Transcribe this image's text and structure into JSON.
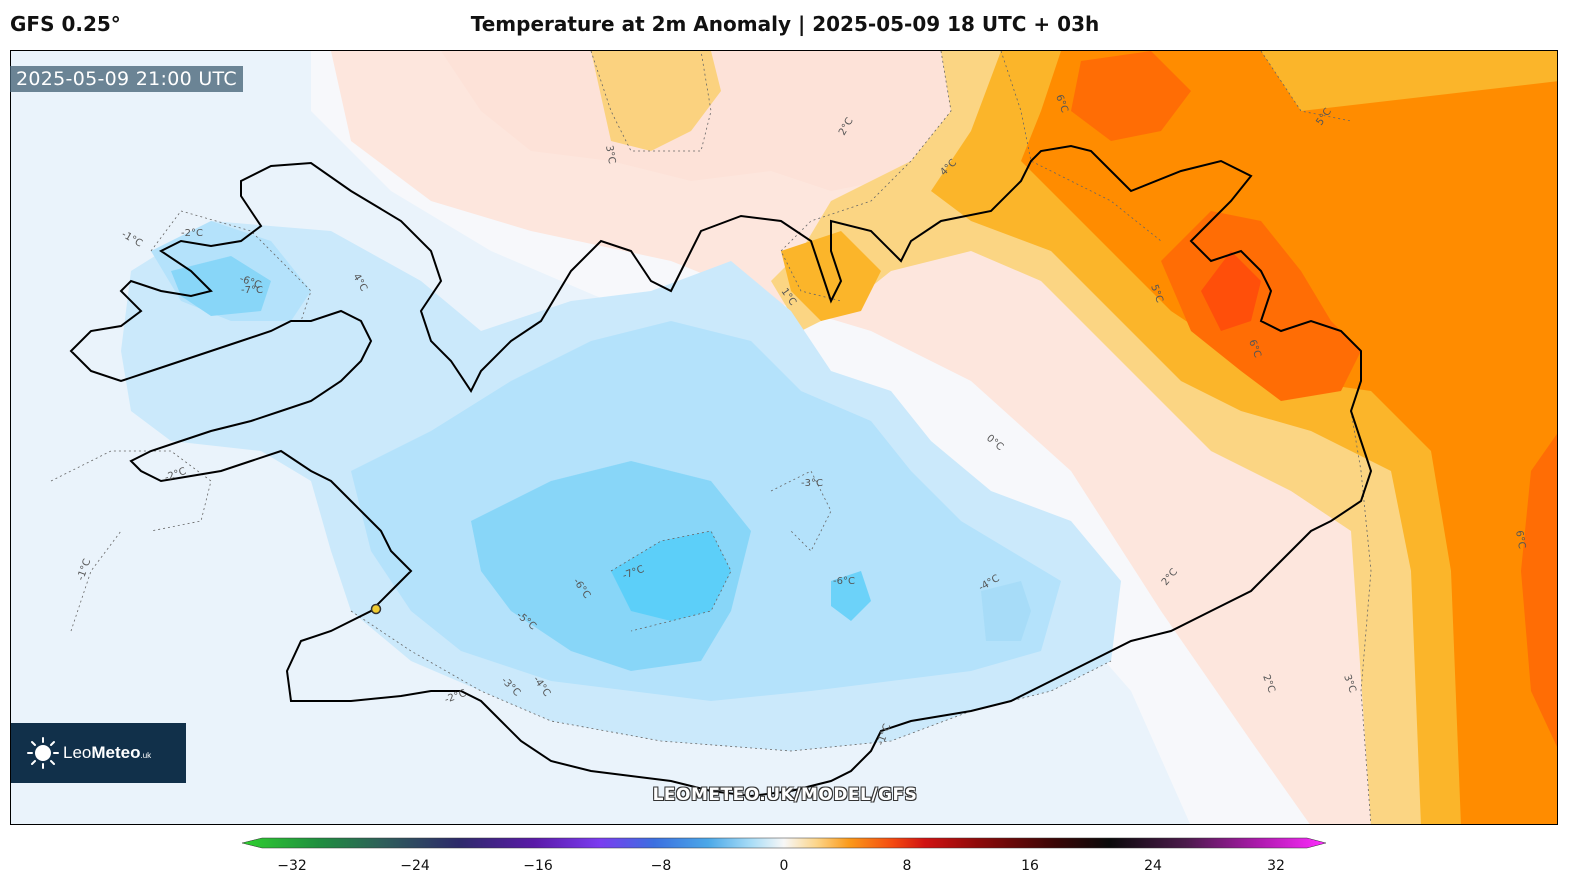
{
  "header": {
    "model": "GFS 0.25°",
    "title": "Temperature at 2m Anomaly | 2025-05-09 18 UTC + 03h"
  },
  "map": {
    "valid_time": "2025-05-09 21:00 UTC",
    "watermark": "LEOMETEO.UK/MODEL/GFS",
    "contour_labels": [
      {
        "text": "3°C"
      },
      {
        "text": "2°C"
      },
      {
        "text": "4°C"
      },
      {
        "text": "6°C"
      },
      {
        "text": "5°C"
      },
      {
        "text": "-1°C"
      },
      {
        "text": "-2°C"
      },
      {
        "text": "4°C"
      },
      {
        "text": "-6°C"
      },
      {
        "text": "-7°C"
      },
      {
        "text": "1°C"
      },
      {
        "text": "0°C"
      },
      {
        "text": "-3°C"
      },
      {
        "text": "-7°C"
      },
      {
        "text": "-6°C"
      },
      {
        "text": "-5°C"
      },
      {
        "text": "-6°C"
      },
      {
        "text": "-4°C"
      },
      {
        "text": "-3°C"
      },
      {
        "text": "-4°C"
      },
      {
        "text": "-2°C"
      },
      {
        "text": "-1°C"
      },
      {
        "text": "-2°C"
      },
      {
        "text": "-1°C"
      },
      {
        "text": "2°C"
      },
      {
        "text": "3°C"
      },
      {
        "text": "6°C"
      },
      {
        "text": "5°C"
      },
      {
        "text": "6°C"
      },
      {
        "text": "2°C"
      },
      {
        "text": "-2°C"
      }
    ],
    "colors": {
      "warm_strong": "#ff8c00",
      "warm_peak": "#ff4f0a",
      "warm_mid": "#fbb52a",
      "warm_light": "#fbd27f",
      "warm_pale": "#fde3da",
      "cold_pale": "#d7ebfa",
      "cold_light": "#b4e2fb",
      "cold_mid": "#88d6f8",
      "cold_strong": "#5ccff9"
    }
  },
  "logo": {
    "name_light": "Leo",
    "name_bold": "Meteo",
    "suffix": ".uk"
  },
  "colorbar": {
    "ticks": [
      "−32",
      "−24",
      "−16",
      "−8",
      "0",
      "8",
      "16",
      "24",
      "32"
    ],
    "min": -32,
    "max": 32
  }
}
